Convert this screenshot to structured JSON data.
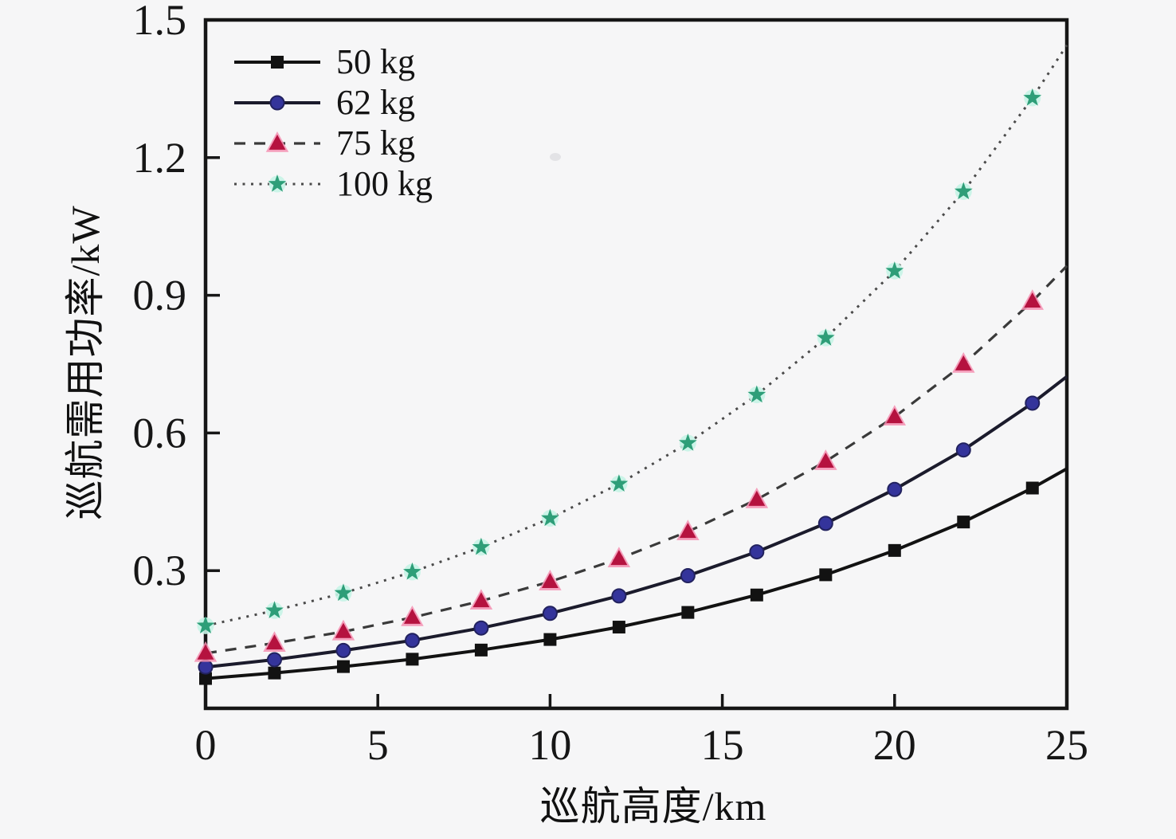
{
  "figure": {
    "background": "#f6f6f7",
    "frame_color": "#161616"
  },
  "chart_data": {
    "type": "line",
    "title": "",
    "xlabel": "巡航高度/km",
    "ylabel": "巡航需用功率/kW",
    "xlim": [
      0,
      25
    ],
    "ylim": [
      0,
      1.5
    ],
    "x_ticks": [
      0,
      5,
      10,
      15,
      20,
      25
    ],
    "y_ticks": [
      0.3,
      0.6,
      0.9,
      1.2,
      1.5
    ],
    "grid": false,
    "legend_position": "upper-left-inside",
    "x": [
      0,
      2,
      4,
      6,
      8,
      10,
      12,
      14,
      16,
      18,
      20,
      22,
      24,
      25
    ],
    "marker_points": 13,
    "series": [
      {
        "label": "50 kg",
        "marker": "square",
        "line": "solid",
        "color": "#121212",
        "line_color": "#121212",
        "values": [
          0.065,
          0.077,
          0.091,
          0.107,
          0.127,
          0.15,
          0.177,
          0.209,
          0.247,
          0.291,
          0.344,
          0.406,
          0.48,
          0.522
        ]
      },
      {
        "label": "62 kg",
        "marker": "circle",
        "line": "solid",
        "color": "#34349b",
        "line_color": "#1b1b2c",
        "values": [
          0.09,
          0.106,
          0.126,
          0.148,
          0.175,
          0.207,
          0.245,
          0.289,
          0.341,
          0.403,
          0.477,
          0.563,
          0.665,
          0.723
        ]
      },
      {
        "label": "75 kg",
        "marker": "triangle",
        "line": "dashed",
        "color": "#b5123f",
        "halo": "#f48fb1",
        "line_color": "#3a3a3a",
        "values": [
          0.12,
          0.142,
          0.167,
          0.198,
          0.234,
          0.276,
          0.326,
          0.385,
          0.455,
          0.538,
          0.635,
          0.75,
          0.887,
          0.964
        ]
      },
      {
        "label": "100 kg",
        "marker": "star",
        "line": "dotted",
        "color": "#2e9e78",
        "halo": "#c6f4e5",
        "line_color": "#4a4a4a",
        "values": [
          0.18,
          0.213,
          0.251,
          0.297,
          0.351,
          0.414,
          0.489,
          0.578,
          0.683,
          0.807,
          0.953,
          1.126,
          1.33,
          1.445
        ]
      }
    ]
  }
}
